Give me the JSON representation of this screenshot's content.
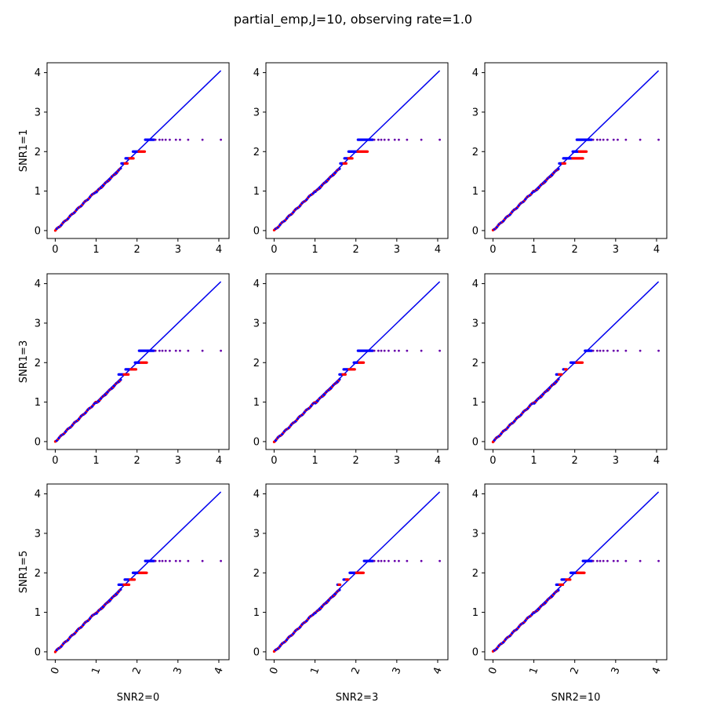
{
  "title": "partial_emp,J=10, observing rate=1.0",
  "chart_data": {
    "type": "scatter",
    "layout": "3x3 grid of Q-Q style scatter panels with y=x reference line",
    "row_labels": [
      "SNR1=1",
      "SNR1=3",
      "SNR1=5"
    ],
    "col_labels": [
      "SNR2=0",
      "SNR2=3",
      "SNR2=10"
    ],
    "xlim": [
      -0.2,
      4.25
    ],
    "ylim": [
      -0.2,
      4.25
    ],
    "xticks": [
      "0",
      "1",
      "2",
      "3",
      "4"
    ],
    "yticks": [
      "0",
      "1",
      "2",
      "3",
      "4"
    ],
    "colors": {
      "ref_line": "#0000ee",
      "points_a": "#ff0000",
      "points_b": "#0000ff",
      "tail_points": "#6600aa"
    },
    "reference_line": {
      "x": [
        0,
        4.05
      ],
      "y": [
        0,
        4.05
      ]
    },
    "plateaus": [
      1.7,
      1.83,
      2.0,
      2.3
    ],
    "tail_points": {
      "y": 2.3,
      "x": [
        2.45,
        2.55,
        2.62,
        2.7,
        2.8,
        2.95,
        3.05,
        3.25,
        3.6,
        4.05
      ]
    },
    "panels": [
      {
        "row": 0,
        "col": 0,
        "red_plateau_ends": [
          1.78,
          1.92,
          2.2,
          2.3
        ],
        "blue_plateau_starts": [
          1.62,
          1.72,
          1.9,
          2.2
        ]
      },
      {
        "row": 0,
        "col": 1,
        "red_plateau_ends": [
          1.78,
          1.92,
          2.3,
          2.3
        ],
        "blue_plateau_starts": [
          1.62,
          1.72,
          1.82,
          2.05
        ]
      },
      {
        "row": 0,
        "col": 2,
        "red_plateau_ends": [
          1.78,
          2.2,
          2.3,
          2.3
        ],
        "blue_plateau_starts": [
          1.62,
          1.72,
          1.95,
          2.05
        ]
      },
      {
        "row": 1,
        "col": 0,
        "red_plateau_ends": [
          1.8,
          1.98,
          2.25,
          2.3
        ],
        "blue_plateau_starts": [
          1.55,
          1.72,
          1.95,
          2.05
        ]
      },
      {
        "row": 1,
        "col": 1,
        "red_plateau_ends": [
          1.75,
          1.98,
          2.2,
          2.3
        ],
        "blue_plateau_starts": [
          1.6,
          1.7,
          1.95,
          2.05
        ]
      },
      {
        "row": 1,
        "col": 2,
        "red_plateau_ends": [
          1.68,
          1.8,
          2.2,
          2.3
        ],
        "blue_plateau_starts": [
          1.55,
          1.72,
          1.9,
          2.25
        ]
      },
      {
        "row": 2,
        "col": 0,
        "red_plateau_ends": [
          1.82,
          1.95,
          2.25,
          2.3
        ],
        "blue_plateau_starts": [
          1.55,
          1.7,
          1.9,
          2.2
        ]
      },
      {
        "row": 2,
        "col": 1,
        "red_plateau_ends": [
          1.62,
          1.82,
          2.2,
          2.3
        ],
        "blue_plateau_starts": [
          1.55,
          1.7,
          1.85,
          2.2
        ]
      },
      {
        "row": 2,
        "col": 2,
        "red_plateau_ends": [
          1.72,
          1.9,
          2.25,
          2.3
        ],
        "blue_plateau_starts": [
          1.55,
          1.68,
          1.9,
          2.2
        ]
      }
    ]
  }
}
